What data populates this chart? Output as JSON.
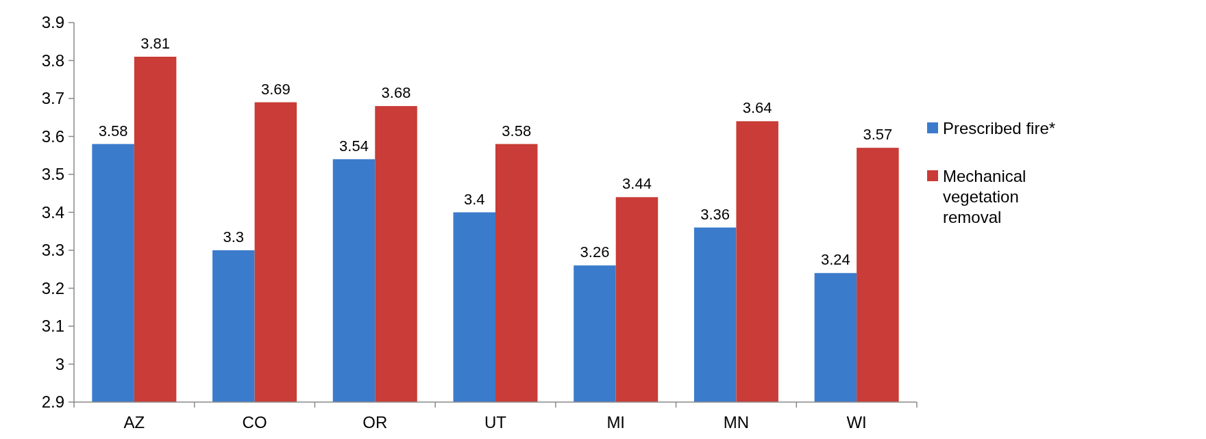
{
  "chart_data": {
    "type": "bar",
    "categories": [
      "AZ",
      "CO",
      "OR",
      "UT",
      "MI",
      "MN",
      "WI"
    ],
    "series": [
      {
        "name": "Prescribed fire*",
        "color": "#3b7bcb",
        "values": [
          3.58,
          3.3,
          3.54,
          3.4,
          3.26,
          3.36,
          3.24
        ]
      },
      {
        "name": "Mechanical vegetation removal",
        "color": "#c93c37",
        "values": [
          3.81,
          3.69,
          3.68,
          3.58,
          3.44,
          3.64,
          3.57
        ]
      }
    ],
    "ylim": [
      2.9,
      3.9
    ],
    "yticks": [
      2.9,
      3,
      3.1,
      3.2,
      3.3,
      3.4,
      3.5,
      3.6,
      3.7,
      3.8,
      3.9
    ],
    "data_labels": true,
    "grid": false,
    "legend": "right"
  }
}
